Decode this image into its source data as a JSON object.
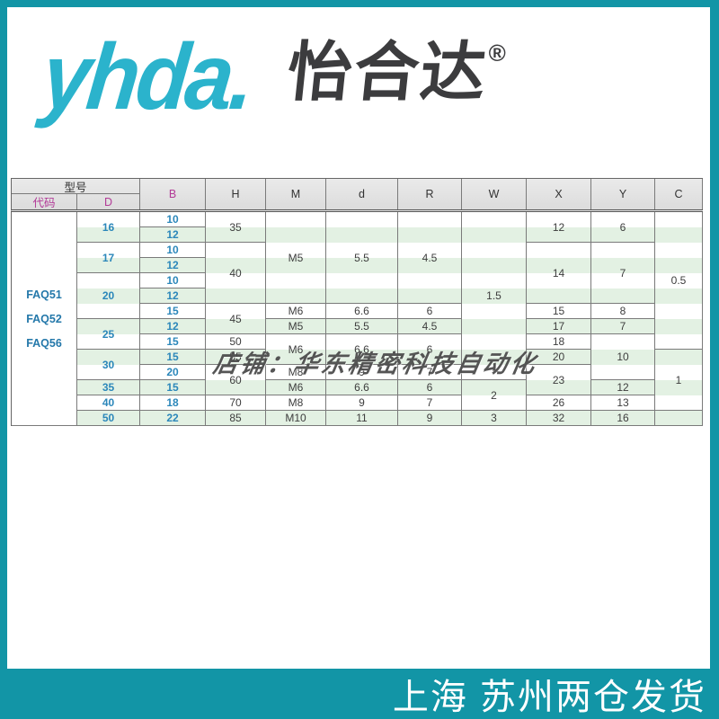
{
  "logo": {
    "wordmark": "yhda.",
    "brand_cjk": "怡合达",
    "registered": "®"
  },
  "watermark": {
    "text": "店铺：华东精密科技自动化"
  },
  "footer_banner": {
    "text": "上海 苏州两仓发货"
  },
  "colors": {
    "frame_teal": "#1295a6",
    "logo_cyan": "#2bb3cc",
    "stripe_green": "#e3f1e3",
    "header_magenta": "#b23a97",
    "value_blue": "#2b87ba",
    "code_blue": "#2478aa"
  },
  "table": {
    "header": {
      "model_group": "型号",
      "code": "代码",
      "diameter": "D",
      "cols": [
        "B",
        "H",
        "M",
        "d",
        "R",
        "W",
        "X",
        "Y",
        "C"
      ]
    },
    "codes": [
      "FAQ51",
      "FAQ52",
      "FAQ56"
    ],
    "rows": [
      {
        "cells": [
          {
            "col": "code",
            "v": "",
            "rs": 14
          },
          {
            "col": "D",
            "v": "16",
            "rs": 2
          },
          {
            "col": "B",
            "v": "10"
          },
          {
            "col": "H",
            "v": "35",
            "rs": 2
          },
          {
            "col": "M",
            "v": "M5",
            "rs": 6
          },
          {
            "col": "d",
            "v": "5.5",
            "rs": 6
          },
          {
            "col": "R",
            "v": "4.5",
            "rs": 6
          },
          {
            "col": "W",
            "v": "1.5",
            "rs": 11
          },
          {
            "col": "X",
            "v": "12",
            "rs": 2
          },
          {
            "col": "Y",
            "v": "6",
            "rs": 2
          },
          {
            "col": "C",
            "v": "0.5",
            "rs": 9
          }
        ]
      },
      {
        "cells": [
          {
            "col": "B",
            "v": "12"
          }
        ]
      },
      {
        "cells": [
          {
            "col": "D",
            "v": "17",
            "rs": 2
          },
          {
            "col": "B",
            "v": "10"
          },
          {
            "col": "H",
            "v": "40",
            "rs": 4
          },
          {
            "col": "X",
            "v": "14",
            "rs": 4
          },
          {
            "col": "Y",
            "v": "7",
            "rs": 4
          }
        ]
      },
      {
        "cells": [
          {
            "col": "B",
            "v": "12"
          }
        ]
      },
      {
        "cells": [
          {
            "col": "D",
            "v": "20",
            "rs": 3
          },
          {
            "col": "B",
            "v": "10"
          }
        ]
      },
      {
        "cells": [
          {
            "col": "B",
            "v": "12"
          }
        ]
      },
      {
        "cells": [
          {
            "col": "B",
            "v": "15"
          },
          {
            "col": "H",
            "v": "45",
            "rs": 2
          },
          {
            "col": "M",
            "v": "M6"
          },
          {
            "col": "d",
            "v": "6.6"
          },
          {
            "col": "R",
            "v": "6"
          },
          {
            "col": "X",
            "v": "15"
          },
          {
            "col": "Y",
            "v": "8"
          }
        ]
      },
      {
        "cells": [
          {
            "col": "D",
            "v": "25",
            "rs": 2
          },
          {
            "col": "B",
            "v": "12"
          },
          {
            "col": "M",
            "v": "M5"
          },
          {
            "col": "d",
            "v": "5.5"
          },
          {
            "col": "R",
            "v": "4.5"
          },
          {
            "col": "X",
            "v": "17"
          },
          {
            "col": "Y",
            "v": "7"
          }
        ]
      },
      {
        "cells": [
          {
            "col": "B",
            "v": "15"
          },
          {
            "col": "H",
            "v": "50"
          },
          {
            "col": "M",
            "v": "M6",
            "rs": 2
          },
          {
            "col": "d",
            "v": "6.6",
            "rs": 2
          },
          {
            "col": "R",
            "v": "6",
            "rs": 2
          },
          {
            "col": "X",
            "v": "18"
          },
          {
            "col": "Y",
            "v": "10",
            "rs": 3
          }
        ]
      },
      {
        "cells": [
          {
            "col": "D",
            "v": "30",
            "rs": 2
          },
          {
            "col": "B",
            "v": "15"
          },
          {
            "col": "H",
            "v": "55"
          },
          {
            "col": "X",
            "v": "20"
          },
          {
            "col": "C",
            "v": "1",
            "rs": 4
          }
        ]
      },
      {
        "cells": [
          {
            "col": "B",
            "v": "20"
          },
          {
            "col": "H",
            "v": "60",
            "rs": 2
          },
          {
            "col": "M",
            "v": "M8"
          },
          {
            "col": "d",
            "v": "9"
          },
          {
            "col": "R",
            "v": "7"
          },
          {
            "col": "X",
            "v": "23",
            "rs": 2
          }
        ]
      },
      {
        "cells": [
          {
            "col": "D",
            "v": "35"
          },
          {
            "col": "B",
            "v": "15"
          },
          {
            "col": "M",
            "v": "M6"
          },
          {
            "col": "d",
            "v": "6.6"
          },
          {
            "col": "R",
            "v": "6"
          },
          {
            "col": "W",
            "v": "2",
            "rs": 2
          },
          {
            "col": "Y",
            "v": "12"
          }
        ]
      },
      {
        "cells": [
          {
            "col": "D",
            "v": "40"
          },
          {
            "col": "B",
            "v": "18"
          },
          {
            "col": "H",
            "v": "70"
          },
          {
            "col": "M",
            "v": "M8"
          },
          {
            "col": "d",
            "v": "9"
          },
          {
            "col": "R",
            "v": "7"
          },
          {
            "col": "X",
            "v": "26"
          },
          {
            "col": "Y",
            "v": "13"
          }
        ]
      },
      {
        "cells": [
          {
            "col": "D",
            "v": "50"
          },
          {
            "col": "B",
            "v": "22"
          },
          {
            "col": "H",
            "v": "85"
          },
          {
            "col": "M",
            "v": "M10"
          },
          {
            "col": "d",
            "v": "11"
          },
          {
            "col": "R",
            "v": "9"
          },
          {
            "col": "W",
            "v": "3"
          },
          {
            "col": "X",
            "v": "32"
          },
          {
            "col": "Y",
            "v": "16"
          },
          {
            "col": "C",
            "v": ""
          }
        ]
      }
    ]
  }
}
